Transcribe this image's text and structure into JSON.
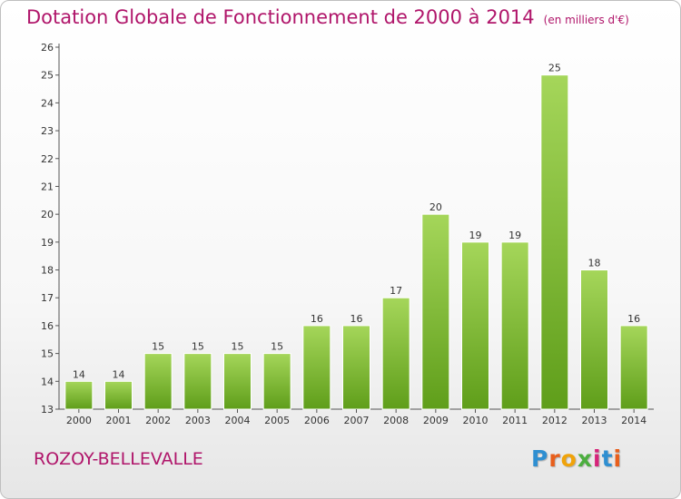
{
  "chart_data": {
    "type": "bar",
    "title": "Dotation Globale de Fonctionnement de 2000 à 2014",
    "subtitle": "(en milliers d'€)",
    "categories": [
      "2000",
      "2001",
      "2002",
      "2003",
      "2004",
      "2005",
      "2006",
      "2007",
      "2008",
      "2009",
      "2010",
      "2011",
      "2012",
      "2013",
      "2014"
    ],
    "values": [
      14,
      14,
      15,
      15,
      15,
      15,
      16,
      16,
      17,
      20,
      19,
      19,
      25,
      18,
      16
    ],
    "ylim": [
      13,
      26
    ],
    "yticks": [
      13,
      14,
      15,
      16,
      17,
      18,
      19,
      20,
      21,
      22,
      23,
      24,
      25,
      26
    ],
    "grid": false,
    "bar_color": "#7dbb2e"
  },
  "footer": {
    "town": "ROZOY-BELLEVALLE",
    "logo_letters": [
      {
        "ch": "P",
        "color": "#2f8fd1"
      },
      {
        "ch": "r",
        "color": "#e85f1c"
      },
      {
        "ch": "o",
        "color": "#f0a30a"
      },
      {
        "ch": "x",
        "color": "#4cae3f"
      },
      {
        "ch": "i",
        "color": "#d6247a"
      },
      {
        "ch": "t",
        "color": "#2f8fd1"
      },
      {
        "ch": "i",
        "color": "#e85f1c"
      }
    ]
  }
}
